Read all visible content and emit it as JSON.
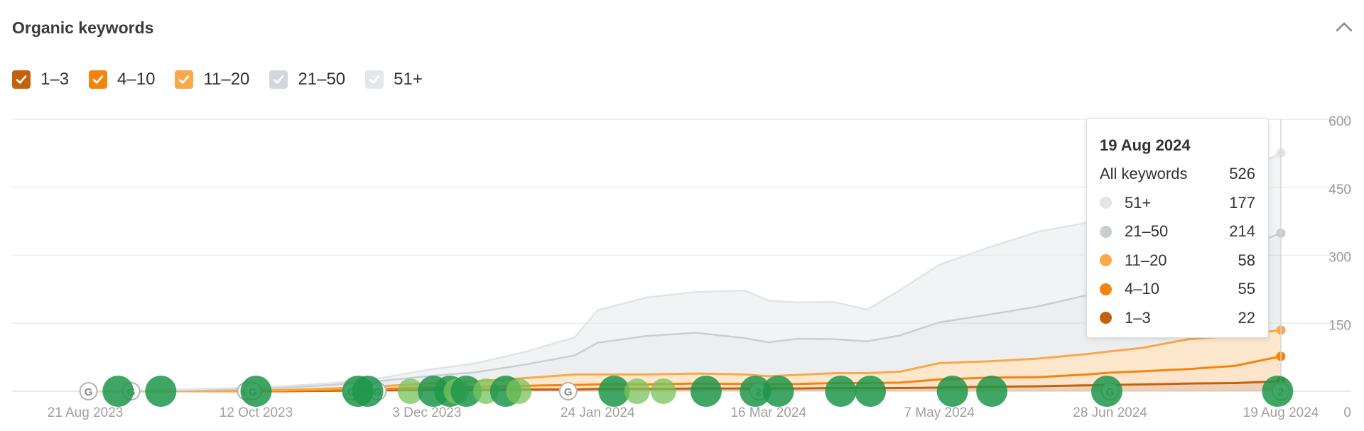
{
  "title": "Organic keywords",
  "legend": [
    {
      "label": "1–3",
      "color": "#c2620f",
      "checked": true
    },
    {
      "label": "4–10",
      "color": "#f5840e",
      "checked": true
    },
    {
      "label": "11–20",
      "color": "#f8a94a",
      "checked": true
    },
    {
      "label": "21–50",
      "color": "#d1d7dc",
      "checked": true
    },
    {
      "label": "51+",
      "color": "#e4e7ea",
      "checked": true
    }
  ],
  "tooltip": {
    "date": "19 Aug 2024",
    "rows": [
      {
        "label": "All keywords",
        "value": "526",
        "color": ""
      },
      {
        "label": "51+",
        "value": "177",
        "color": "#e2e5e8"
      },
      {
        "label": "21–50",
        "value": "214",
        "color": "#c9ced3"
      },
      {
        "label": "11–20",
        "value": "58",
        "color": "#f8a94a"
      },
      {
        "label": "4–10",
        "value": "55",
        "color": "#f5840e"
      },
      {
        "label": "1–3",
        "value": "22",
        "color": "#c2620f"
      }
    ]
  },
  "chart_data": {
    "type": "area",
    "stacked": true,
    "x": [
      "2023-08-21",
      "2023-09-05",
      "2023-09-20",
      "2023-10-05",
      "2023-10-20",
      "2023-11-04",
      "2023-11-19",
      "2023-12-03",
      "2023-12-18",
      "2024-01-02",
      "2024-01-17",
      "2024-01-24",
      "2024-02-08",
      "2024-02-23",
      "2024-03-09",
      "2024-03-16",
      "2024-03-25",
      "2024-04-05",
      "2024-04-15",
      "2024-04-25",
      "2024-05-07",
      "2024-05-22",
      "2024-06-06",
      "2024-06-21",
      "2024-06-28",
      "2024-07-08",
      "2024-07-22",
      "2024-08-05",
      "2024-08-19"
    ],
    "series": [
      {
        "name": "1–3",
        "color": "#c2620f",
        "values": [
          0,
          0,
          0,
          0,
          0,
          1,
          2,
          3,
          3,
          4,
          4,
          5,
          5,
          6,
          6,
          6,
          6,
          7,
          7,
          7,
          8,
          10,
          11,
          13,
          14,
          15,
          17,
          18,
          22
        ]
      },
      {
        "name": "4–10",
        "color": "#f5840e",
        "values": [
          0,
          0,
          0,
          0,
          1,
          2,
          3,
          5,
          7,
          8,
          10,
          10,
          10,
          11,
          10,
          9,
          10,
          11,
          11,
          12,
          18,
          20,
          20,
          24,
          27,
          29,
          32,
          38,
          55
        ]
      },
      {
        "name": "11–20",
        "color": "#f8a94a",
        "values": [
          0,
          0,
          0,
          1,
          2,
          3,
          6,
          9,
          12,
          17,
          23,
          22,
          22,
          22,
          21,
          18,
          20,
          22,
          22,
          24,
          36,
          36,
          41,
          45,
          47,
          52,
          66,
          67,
          58
        ]
      },
      {
        "name": "21–50",
        "color": "#d1d7dc",
        "values": [
          0,
          1,
          2,
          4,
          5,
          8,
          12,
          16,
          20,
          30,
          42,
          70,
          85,
          90,
          80,
          75,
          80,
          75,
          70,
          80,
          90,
          103,
          115,
          130,
          150,
          165,
          180,
          185,
          214
        ]
      },
      {
        "name": "51+",
        "color": "#e4e7ea",
        "values": [
          0,
          1,
          2,
          2,
          3,
          4,
          6,
          14,
          20,
          28,
          40,
          72,
          85,
          90,
          105,
          92,
          80,
          82,
          70,
          100,
          127,
          148,
          165,
          160,
          185,
          190,
          160,
          165,
          177
        ]
      }
    ],
    "x_tick_labels": [
      "21 Aug 2023",
      "12 Oct 2023",
      "3 Dec 2023",
      "24 Jan 2024",
      "16 Mar 2024",
      "7 May 2024",
      "28 Jun 2024",
      "19 Aug 2024"
    ],
    "y_tick_labels": [
      "0",
      "150",
      "300",
      "450",
      "600"
    ],
    "ylim": [
      0,
      600
    ],
    "grid": true,
    "annotations": [
      {
        "x": "2023-08-22",
        "type": "G"
      },
      {
        "x": "2023-09-04",
        "type": "G"
      },
      {
        "x": "2023-10-09",
        "type": "G"
      },
      {
        "x": "2023-10-11",
        "type": "G"
      },
      {
        "x": "2023-11-10",
        "type": "G"
      },
      {
        "x": "2023-11-18",
        "type": "G"
      },
      {
        "x": "2024-01-15",
        "type": "G"
      },
      {
        "x": "2024-03-13",
        "type": "2"
      },
      {
        "x": "2024-06-28",
        "type": "G"
      },
      {
        "x": "2024-08-19",
        "type": "2"
      }
    ],
    "markers": [
      {
        "x": "2023-08-31",
        "style": "dark"
      },
      {
        "x": "2023-09-13",
        "style": "dark"
      },
      {
        "x": "2023-10-12",
        "style": "dark"
      },
      {
        "x": "2023-11-12",
        "style": "dark"
      },
      {
        "x": "2023-11-15",
        "style": "dark"
      },
      {
        "x": "2023-11-28",
        "style": "light"
      },
      {
        "x": "2023-12-05",
        "style": "dark"
      },
      {
        "x": "2023-12-10",
        "style": "dark"
      },
      {
        "x": "2023-12-12",
        "style": "light"
      },
      {
        "x": "2023-12-15",
        "style": "dark"
      },
      {
        "x": "2023-12-21",
        "style": "light"
      },
      {
        "x": "2023-12-27",
        "style": "dark"
      },
      {
        "x": "2023-12-31",
        "style": "light"
      },
      {
        "x": "2024-01-29",
        "style": "dark"
      },
      {
        "x": "2024-02-05",
        "style": "light"
      },
      {
        "x": "2024-02-13",
        "style": "light"
      },
      {
        "x": "2024-02-26",
        "style": "dark"
      },
      {
        "x": "2024-03-12",
        "style": "dark"
      },
      {
        "x": "2024-03-19",
        "style": "dark"
      },
      {
        "x": "2024-04-07",
        "style": "dark"
      },
      {
        "x": "2024-04-16",
        "style": "dark"
      },
      {
        "x": "2024-05-11",
        "style": "dark"
      },
      {
        "x": "2024-05-23",
        "style": "dark"
      },
      {
        "x": "2024-06-27",
        "style": "dark"
      },
      {
        "x": "2024-08-18",
        "style": "dark"
      }
    ]
  }
}
